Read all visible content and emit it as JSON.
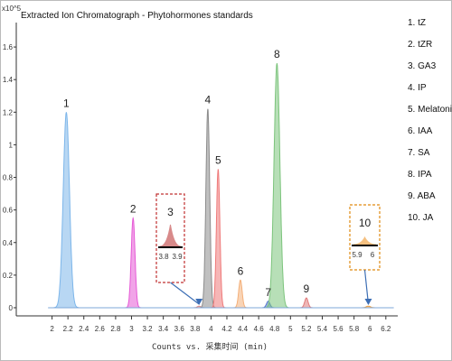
{
  "chart_data": {
    "type": "line",
    "title": "Extracted Ion Chromatograph - Phytohormones standards",
    "xlabel": "Counts vs. 采集时间 (min)",
    "ylabel": "",
    "y_multiplier": "x10^5",
    "xlim": [
      1.55,
      6.35
    ],
    "ylim": [
      -0.05,
      1.75
    ],
    "x_ticks": [
      "2",
      "2.2",
      "2.4",
      "2.6",
      "2.8",
      "3",
      "3.2",
      "3.4",
      "3.6",
      "3.8",
      "4",
      "4.2",
      "4.4",
      "4.6",
      "4.8",
      "5",
      "5.2",
      "5.4",
      "5.6",
      "5.8",
      "6",
      "6.2"
    ],
    "y_ticks": [
      "0",
      "0.2",
      "0.4",
      "0.6",
      "0.8",
      "1",
      "1.2",
      "1.4",
      "1.6"
    ],
    "series": [
      {
        "label": "1",
        "name": "tZ",
        "rt": 2.18,
        "height": 1.2,
        "width": 0.09,
        "color": "#7db6ea"
      },
      {
        "label": "2",
        "name": "tZR",
        "rt": 3.02,
        "height": 0.55,
        "width": 0.055,
        "color": "#e65ad6"
      },
      {
        "label": "3",
        "name": "GA3",
        "rt": 3.85,
        "height": 0.01,
        "width": 0.05,
        "color": "#d88a8a"
      },
      {
        "label": "4",
        "name": "IP",
        "rt": 3.96,
        "height": 1.22,
        "width": 0.055,
        "color": "#8c8c8c"
      },
      {
        "label": "5",
        "name": "Melatonin",
        "rt": 4.09,
        "height": 0.85,
        "width": 0.05,
        "color": "#ef7a7a"
      },
      {
        "label": "6",
        "name": "IAA",
        "rt": 4.37,
        "height": 0.17,
        "width": 0.05,
        "color": "#f4b07a"
      },
      {
        "label": "7",
        "name": "SA",
        "rt": 4.72,
        "height": 0.04,
        "width": 0.05,
        "color": "#5577cc"
      },
      {
        "label": "8",
        "name": "IPA",
        "rt": 4.83,
        "height": 1.5,
        "width": 0.085,
        "color": "#7cc47c"
      },
      {
        "label": "9",
        "name": "ABA",
        "rt": 5.2,
        "height": 0.06,
        "width": 0.05,
        "color": "#e07a7a"
      },
      {
        "label": "10",
        "name": "JA",
        "rt": 5.98,
        "height": 0.01,
        "width": 0.06,
        "color": "#f0a040"
      }
    ],
    "insets": [
      {
        "label": "3",
        "ticks": [
          "3.8",
          "3.9"
        ],
        "border_color": "#c03030",
        "fill_color": "#d88a8a"
      },
      {
        "label": "10",
        "ticks": [
          "5.9",
          "6"
        ],
        "border_color": "#e08a10",
        "fill_color": "#f5c080"
      }
    ],
    "legend_position": "right",
    "grid": false
  }
}
